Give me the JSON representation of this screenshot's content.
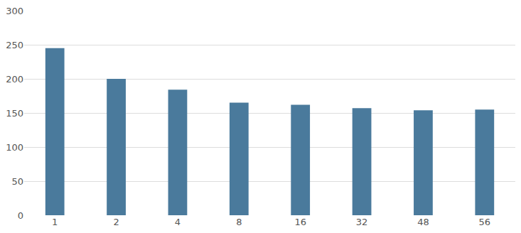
{
  "chart_data": {
    "type": "bar",
    "categories": [
      "1",
      "2",
      "4",
      "8",
      "16",
      "32",
      "48",
      "56"
    ],
    "values": [
      245,
      200,
      184,
      165,
      162,
      157,
      154,
      155
    ],
    "color": "#4a7a9c",
    "ylim": [
      0,
      300
    ],
    "yticks": [
      0,
      50,
      100,
      150,
      200,
      250,
      300
    ],
    "grid": true
  }
}
